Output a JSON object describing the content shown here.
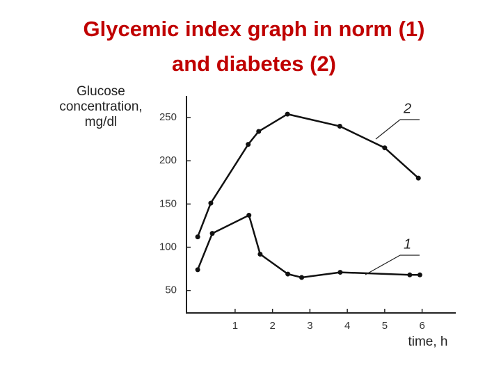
{
  "chart_data": {
    "type": "line",
    "title": [
      "Glycemic index graph in norm (1)",
      "and diabetes (2)"
    ],
    "y_label": [
      "Glucose",
      "concentration,",
      "mg/dl"
    ],
    "x_label": "time, h",
    "xlim": [
      -0.3,
      6.9
    ],
    "xticks": [
      1,
      2,
      3,
      4,
      5,
      6
    ],
    "ylim": [
      24,
      275
    ],
    "yticks": [
      50,
      100,
      150,
      200,
      250
    ],
    "grid": false,
    "series": [
      {
        "name": "2",
        "color": "#111111",
        "x": [
          0,
          0.35,
          1.35,
          1.63,
          2.4,
          3.8,
          5.0,
          5.9
        ],
        "values": [
          112,
          151,
          219,
          234,
          254,
          240,
          215,
          180
        ]
      },
      {
        "name": "1",
        "color": "#111111",
        "x": [
          0,
          0.39,
          1.37,
          1.67,
          2.41,
          2.78,
          3.81,
          5.67,
          5.94
        ],
        "values": [
          74,
          116,
          137,
          92,
          69,
          65,
          71,
          68,
          68
        ]
      }
    ]
  }
}
